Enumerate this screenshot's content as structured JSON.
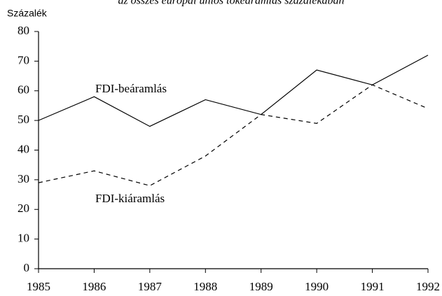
{
  "chart_data": {
    "type": "line",
    "subtitle": "az összes európai uniós tőkeáramlás százalékában",
    "y_label": "Százalék",
    "x": [
      1985,
      1986,
      1987,
      1988,
      1989,
      1990,
      1991,
      1992
    ],
    "series": [
      {
        "name": "FDI-beáramlás",
        "color": "#000000",
        "style": "solid",
        "values": [
          50,
          58,
          48,
          57,
          52,
          67,
          62,
          72
        ]
      },
      {
        "name": "FDI-kiáramlás",
        "color": "#000000",
        "style": "dashed",
        "values": [
          29,
          33,
          28,
          38,
          52,
          49,
          62,
          54
        ]
      }
    ],
    "xlim": [
      1985,
      1992
    ],
    "xticks": [
      1985,
      1986,
      1987,
      1988,
      1989,
      1990,
      1991,
      1992
    ],
    "ylim": [
      0,
      80
    ],
    "yticks": [
      0,
      10,
      20,
      30,
      40,
      50,
      60,
      70,
      80
    ]
  }
}
